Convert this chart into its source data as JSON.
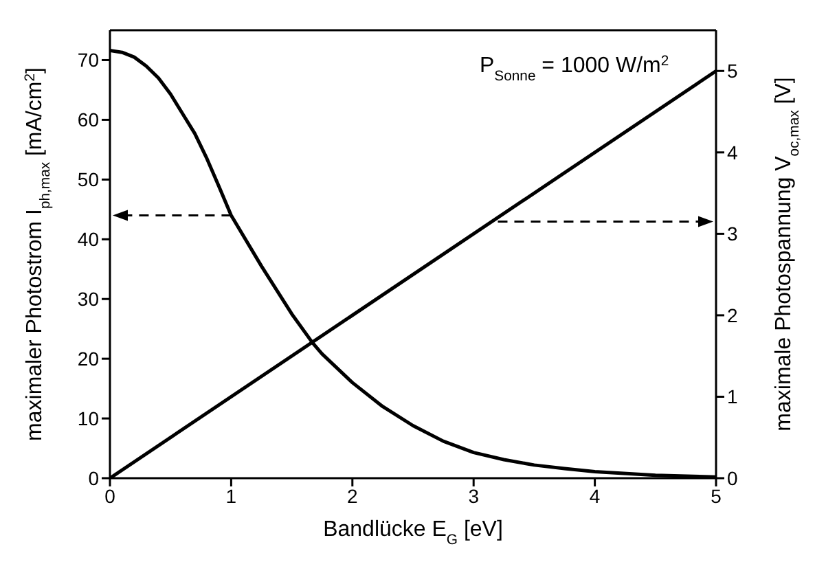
{
  "chart_data": {
    "type": "line",
    "xlabel": "Bandlücke E$_{G}$ [eV]",
    "ylabel": "maximaler Photostrom I$_{ph,max}$ [mA/cm$^{2}$]",
    "y2label": "maximale Photospannung V$_{oc,max}$ [V]",
    "annotations": [
      "P$_{Sonne}$ = 1000 W/m$^{2}$"
    ],
    "xlim": [
      0,
      5
    ],
    "xticks": [
      0,
      1,
      2,
      3,
      4,
      5
    ],
    "ylim": [
      0,
      75
    ],
    "yticks": [
      0,
      10,
      20,
      30,
      40,
      50,
      60,
      70
    ],
    "y2lim": [
      0,
      5.5
    ],
    "y2ticks": [
      0,
      1,
      2,
      3,
      4,
      5
    ],
    "marker": "none",
    "line_style": "solid",
    "series": [
      {
        "color": "#000000",
        "x": [
          0,
          0.1,
          0.2,
          0.3,
          0.4,
          0.5,
          0.6,
          0.7,
          0.8,
          0.9,
          1.0,
          1.25,
          1.5,
          1.67,
          1.75,
          2.0,
          2.25,
          2.5,
          2.75,
          3.0,
          3.25,
          3.5,
          3.75,
          4.0,
          4.5,
          5.0
        ],
        "values": [
          71.6,
          71.3,
          70.5,
          69,
          67,
          64.3,
          61,
          57.7,
          53.5,
          48.8,
          44,
          35.5,
          27.5,
          22.7,
          20.8,
          16,
          12,
          8.8,
          6.2,
          4.3,
          3.1,
          2.2,
          1.6,
          1.1,
          0.5,
          0.2
        ]
      },
      {
        "color": "#000000",
        "axis": "y2",
        "x": [
          0,
          5
        ],
        "values": [
          0,
          5
        ]
      }
    ]
  }
}
